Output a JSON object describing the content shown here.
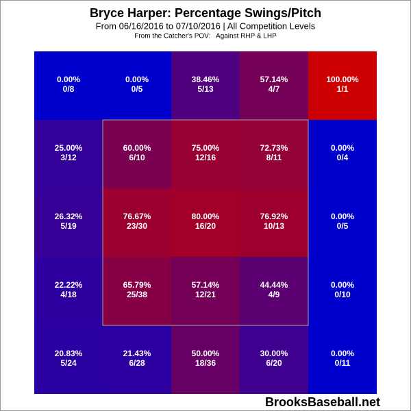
{
  "chart_data": {
    "type": "heatmap",
    "title": "Bryce Harper: Percentage Swings/Pitch",
    "subtitle": "From 06/16/2016 to 07/10/2016 | All Competition Levels",
    "note": "From the Catcher's POV:   Against RHP & LHP",
    "watermark": "BrooksBaseball.net",
    "color_low": "#0000cc",
    "color_high": "#cc0000",
    "value_range": [
      0,
      100
    ],
    "values": [
      [
        0,
        0,
        38.46,
        57.14,
        100
      ],
      [
        25,
        60,
        75,
        72.73,
        0
      ],
      [
        26.32,
        76.67,
        80,
        76.92,
        0
      ],
      [
        22.22,
        65.79,
        57.14,
        44.44,
        0
      ],
      [
        20.83,
        21.43,
        50,
        30,
        0
      ]
    ],
    "value_labels": [
      [
        "0.00%",
        "0.00%",
        "38.46%",
        "57.14%",
        "100.00%"
      ],
      [
        "25.00%",
        "60.00%",
        "75.00%",
        "72.73%",
        "0.00%"
      ],
      [
        "26.32%",
        "76.67%",
        "80.00%",
        "76.92%",
        "0.00%"
      ],
      [
        "22.22%",
        "65.79%",
        "57.14%",
        "44.44%",
        "0.00%"
      ],
      [
        "20.83%",
        "21.43%",
        "50.00%",
        "30.00%",
        "0.00%"
      ]
    ],
    "counts": [
      [
        "0/8",
        "0/5",
        "5/13",
        "4/7",
        "1/1"
      ],
      [
        "3/12",
        "6/10",
        "12/16",
        "8/11",
        "0/4"
      ],
      [
        "5/19",
        "23/30",
        "16/20",
        "10/13",
        "0/5"
      ],
      [
        "4/18",
        "25/38",
        "12/21",
        "4/9",
        "0/10"
      ],
      [
        "5/24",
        "6/28",
        "18/36",
        "6/20",
        "0/11"
      ]
    ]
  }
}
